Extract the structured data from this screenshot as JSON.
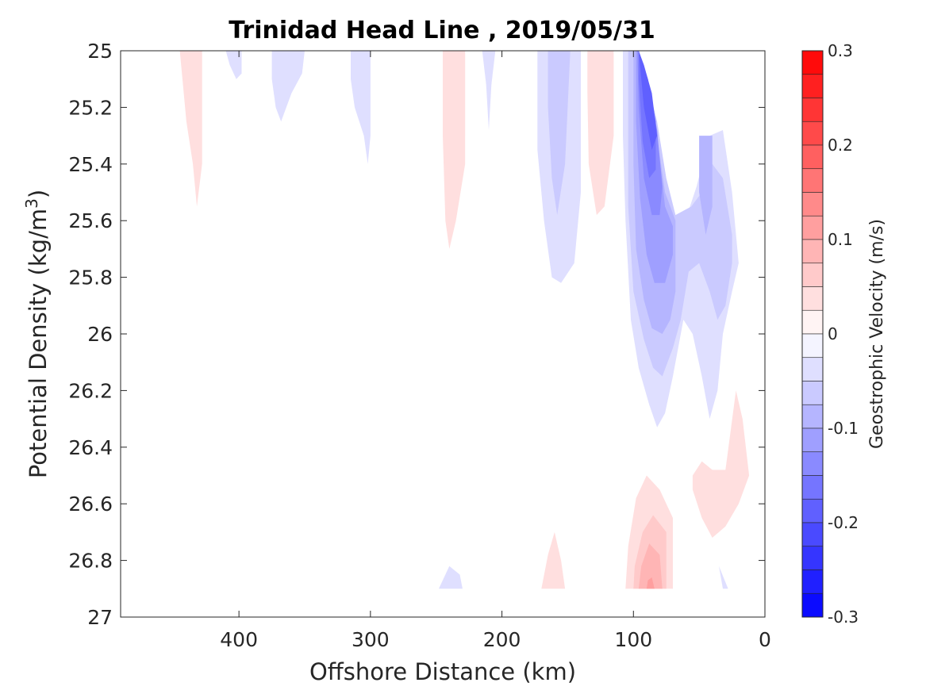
{
  "chart_data": {
    "type": "contour",
    "title": "Trinidad Head Line , 2019/05/31",
    "xlabel": "Offshore Distance (km)",
    "ylabel_main": "Potential Density (kg/m",
    "ylabel_sup": "3",
    "ylabel_end": ")",
    "x_ticks": [
      400,
      300,
      200,
      100,
      0
    ],
    "x_tick_labels": [
      "400",
      "300",
      "200",
      "100",
      "0"
    ],
    "xlim": [
      490,
      0
    ],
    "x_reversed": true,
    "y_ticks": [
      25,
      25.2,
      25.4,
      25.6,
      25.8,
      26,
      26.2,
      26.4,
      26.6,
      26.8,
      27
    ],
    "y_tick_labels": [
      "25",
      "25.2",
      "25.4",
      "25.6",
      "25.8",
      "26",
      "26.2",
      "26.4",
      "26.6",
      "26.8",
      "27"
    ],
    "ylim": [
      25,
      27
    ],
    "y_reversed": true,
    "colorbar": {
      "label": "Geostrophic Velocity (m/s)",
      "range": [
        -0.3,
        0.3
      ],
      "step": 0.025,
      "ticks": [
        0.3,
        0.2,
        0.1,
        0,
        -0.1,
        -0.2,
        -0.3
      ],
      "tick_labels": [
        "0.3",
        "0.2",
        "0.1",
        "0",
        "-0.1",
        "-0.2",
        "-0.3"
      ],
      "negative_color": "#0000ff",
      "positive_color": "#ff0000",
      "zero_color": "#ffffff"
    },
    "regions": [
      {
        "level": 0.0375,
        "points": [
          [
            445,
            25
          ],
          [
            428,
            25
          ],
          [
            428,
            25.4
          ],
          [
            432,
            25.55
          ],
          [
            435,
            25.4
          ],
          [
            440,
            25.25
          ]
        ]
      },
      {
        "level": -0.0375,
        "points": [
          [
            410,
            25
          ],
          [
            398,
            25
          ],
          [
            398,
            25.08
          ],
          [
            402,
            25.1
          ],
          [
            407,
            25.05
          ]
        ]
      },
      {
        "level": -0.0375,
        "points": [
          [
            375,
            25
          ],
          [
            350,
            25
          ],
          [
            352,
            25.08
          ],
          [
            360,
            25.15
          ],
          [
            368,
            25.25
          ],
          [
            372,
            25.2
          ],
          [
            375,
            25.1
          ]
        ]
      },
      {
        "level": -0.0375,
        "points": [
          [
            315,
            25
          ],
          [
            300,
            25
          ],
          [
            300,
            25.3
          ],
          [
            302,
            25.4
          ],
          [
            305,
            25.3
          ],
          [
            312,
            25.2
          ],
          [
            315,
            25.1
          ]
        ]
      },
      {
        "level": 0.0375,
        "points": [
          [
            245,
            25
          ],
          [
            228,
            25
          ],
          [
            228,
            25.4
          ],
          [
            235,
            25.6
          ],
          [
            240,
            25.7
          ],
          [
            243,
            25.6
          ],
          [
            245,
            25.3
          ]
        ]
      },
      {
        "level": -0.0375,
        "points": [
          [
            215,
            25
          ],
          [
            205,
            25
          ],
          [
            208,
            25.12
          ],
          [
            210,
            25.28
          ],
          [
            212,
            25.12
          ]
        ]
      },
      {
        "level": -0.0375,
        "points": [
          [
            173,
            25
          ],
          [
            140,
            25
          ],
          [
            140,
            25.5
          ],
          [
            145,
            25.75
          ],
          [
            155,
            25.82
          ],
          [
            162,
            25.8
          ],
          [
            168,
            25.6
          ],
          [
            173,
            25.35
          ]
        ]
      },
      {
        "level": -0.0625,
        "points": [
          [
            165,
            25
          ],
          [
            148,
            25
          ],
          [
            152,
            25.4
          ],
          [
            158,
            25.58
          ],
          [
            162,
            25.45
          ],
          [
            165,
            25.2
          ]
        ]
      },
      {
        "level": 0.0375,
        "points": [
          [
            135,
            25
          ],
          [
            115,
            25
          ],
          [
            115,
            25.3
          ],
          [
            122,
            25.55
          ],
          [
            128,
            25.58
          ],
          [
            134,
            25.4
          ],
          [
            135,
            25.15
          ]
        ]
      },
      {
        "level": -0.0375,
        "points": [
          [
            108,
            25
          ],
          [
            96,
            25
          ],
          [
            92,
            25.1
          ],
          [
            85,
            25.2
          ],
          [
            78,
            25.4
          ],
          [
            72,
            25.58
          ],
          [
            62,
            25.62
          ],
          [
            52,
            25.48
          ],
          [
            42,
            25.3
          ],
          [
            32,
            25.28
          ],
          [
            25,
            25.5
          ],
          [
            20,
            25.75
          ],
          [
            25,
            25.85
          ],
          [
            32,
            26
          ],
          [
            36,
            26.2
          ],
          [
            42,
            26.3
          ],
          [
            48,
            26.15
          ],
          [
            55,
            26.0
          ],
          [
            62,
            25.95
          ],
          [
            70,
            26.15
          ],
          [
            76,
            26.28
          ],
          [
            82,
            26.33
          ],
          [
            88,
            26.25
          ],
          [
            96,
            26.12
          ],
          [
            102,
            25.95
          ],
          [
            106,
            25.6
          ],
          [
            108,
            25.3
          ]
        ]
      },
      {
        "level": -0.0625,
        "points": [
          [
            104,
            25
          ],
          [
            98,
            25
          ],
          [
            90,
            25.1
          ],
          [
            82,
            25.25
          ],
          [
            75,
            25.45
          ],
          [
            68,
            25.58
          ],
          [
            56,
            25.55
          ],
          [
            48,
            25.5
          ],
          [
            40,
            25.4
          ],
          [
            32,
            25.45
          ],
          [
            25,
            25.65
          ],
          [
            25,
            25.75
          ],
          [
            30,
            25.9
          ],
          [
            36,
            25.95
          ],
          [
            42,
            25.85
          ],
          [
            50,
            25.75
          ],
          [
            58,
            25.78
          ],
          [
            64,
            25.95
          ],
          [
            70,
            26.05
          ],
          [
            78,
            26.15
          ],
          [
            85,
            26.12
          ],
          [
            92,
            26.02
          ],
          [
            100,
            25.85
          ],
          [
            104,
            25.55
          ]
        ]
      },
      {
        "level": -0.0875,
        "points": [
          [
            100,
            25
          ],
          [
            96,
            25
          ],
          [
            89,
            25.1
          ],
          [
            82,
            25.3
          ],
          [
            76,
            25.5
          ],
          [
            68,
            25.6
          ],
          [
            68,
            25.85
          ],
          [
            72,
            25.95
          ],
          [
            78,
            26.0
          ],
          [
            86,
            25.98
          ],
          [
            92,
            25.88
          ],
          [
            98,
            25.7
          ],
          [
            100,
            25.4
          ]
        ]
      },
      {
        "level": -0.1125,
        "points": [
          [
            98,
            25
          ],
          [
            96,
            25
          ],
          [
            89,
            25.1
          ],
          [
            82,
            25.3
          ],
          [
            76,
            25.55
          ],
          [
            70,
            25.62
          ],
          [
            70,
            25.72
          ],
          [
            76,
            25.82
          ],
          [
            84,
            25.82
          ],
          [
            90,
            25.72
          ],
          [
            95,
            25.52
          ],
          [
            98,
            25.25
          ]
        ]
      },
      {
        "level": -0.1375,
        "points": [
          [
            97,
            25
          ],
          [
            96,
            25
          ],
          [
            89,
            25.1
          ],
          [
            82,
            25.28
          ],
          [
            78,
            25.48
          ],
          [
            80,
            25.58
          ],
          [
            86,
            25.58
          ],
          [
            92,
            25.45
          ],
          [
            96,
            25.2
          ]
        ]
      },
      {
        "level": -0.1625,
        "points": [
          [
            96,
            25
          ],
          [
            96,
            25
          ],
          [
            89,
            25.1
          ],
          [
            83,
            25.25
          ],
          [
            83,
            25.42
          ],
          [
            88,
            25.45
          ],
          [
            93,
            25.32
          ],
          [
            96,
            25.1
          ]
        ]
      },
      {
        "level": -0.1875,
        "points": [
          [
            96,
            25
          ],
          [
            92,
            25.05
          ],
          [
            86,
            25.15
          ],
          [
            82,
            25.3
          ],
          [
            86,
            25.35
          ],
          [
            92,
            25.2
          ]
        ]
      },
      {
        "level": -0.0875,
        "points": [
          [
            50,
            25.3
          ],
          [
            40,
            25.3
          ],
          [
            40,
            25.55
          ],
          [
            45,
            25.65
          ],
          [
            50,
            25.5
          ]
        ]
      },
      {
        "level": -0.0375,
        "points": [
          [
            35,
            26.82
          ],
          [
            28,
            26.9
          ],
          [
            32,
            26.9
          ]
        ]
      },
      {
        "level": -0.0375,
        "points": [
          [
            248,
            26.9
          ],
          [
            230,
            26.9
          ],
          [
            232,
            26.85
          ],
          [
            240,
            26.82
          ]
        ]
      },
      {
        "level": 0.0375,
        "points": [
          [
            170,
            26.9
          ],
          [
            152,
            26.9
          ],
          [
            155,
            26.8
          ],
          [
            160,
            26.7
          ],
          [
            165,
            26.78
          ]
        ]
      },
      {
        "level": 0.0375,
        "points": [
          [
            106,
            26.9
          ],
          [
            70,
            26.9
          ],
          [
            70,
            26.65
          ],
          [
            80,
            26.55
          ],
          [
            90,
            26.5
          ],
          [
            98,
            26.58
          ],
          [
            104,
            26.75
          ]
        ]
      },
      {
        "level": 0.0625,
        "points": [
          [
            100,
            26.9
          ],
          [
            75,
            26.9
          ],
          [
            75,
            26.7
          ],
          [
            85,
            26.64
          ],
          [
            93,
            26.7
          ],
          [
            99,
            26.82
          ]
        ]
      },
      {
        "level": 0.0875,
        "points": [
          [
            96,
            26.9
          ],
          [
            78,
            26.9
          ],
          [
            80,
            26.78
          ],
          [
            88,
            26.74
          ],
          [
            94,
            26.82
          ]
        ]
      },
      {
        "level": 0.1125,
        "points": [
          [
            90,
            26.9
          ],
          [
            84,
            26.9
          ],
          [
            86,
            26.86
          ],
          [
            89,
            26.87
          ]
        ]
      },
      {
        "level": 0.0375,
        "points": [
          [
            55,
            26.5
          ],
          [
            48,
            26.45
          ],
          [
            40,
            26.48
          ],
          [
            30,
            26.48
          ],
          [
            22,
            26.2
          ],
          [
            17,
            26.3
          ],
          [
            12,
            26.5
          ],
          [
            20,
            26.6
          ],
          [
            30,
            26.68
          ],
          [
            40,
            26.72
          ],
          [
            48,
            26.65
          ],
          [
            55,
            26.55
          ]
        ]
      }
    ]
  }
}
